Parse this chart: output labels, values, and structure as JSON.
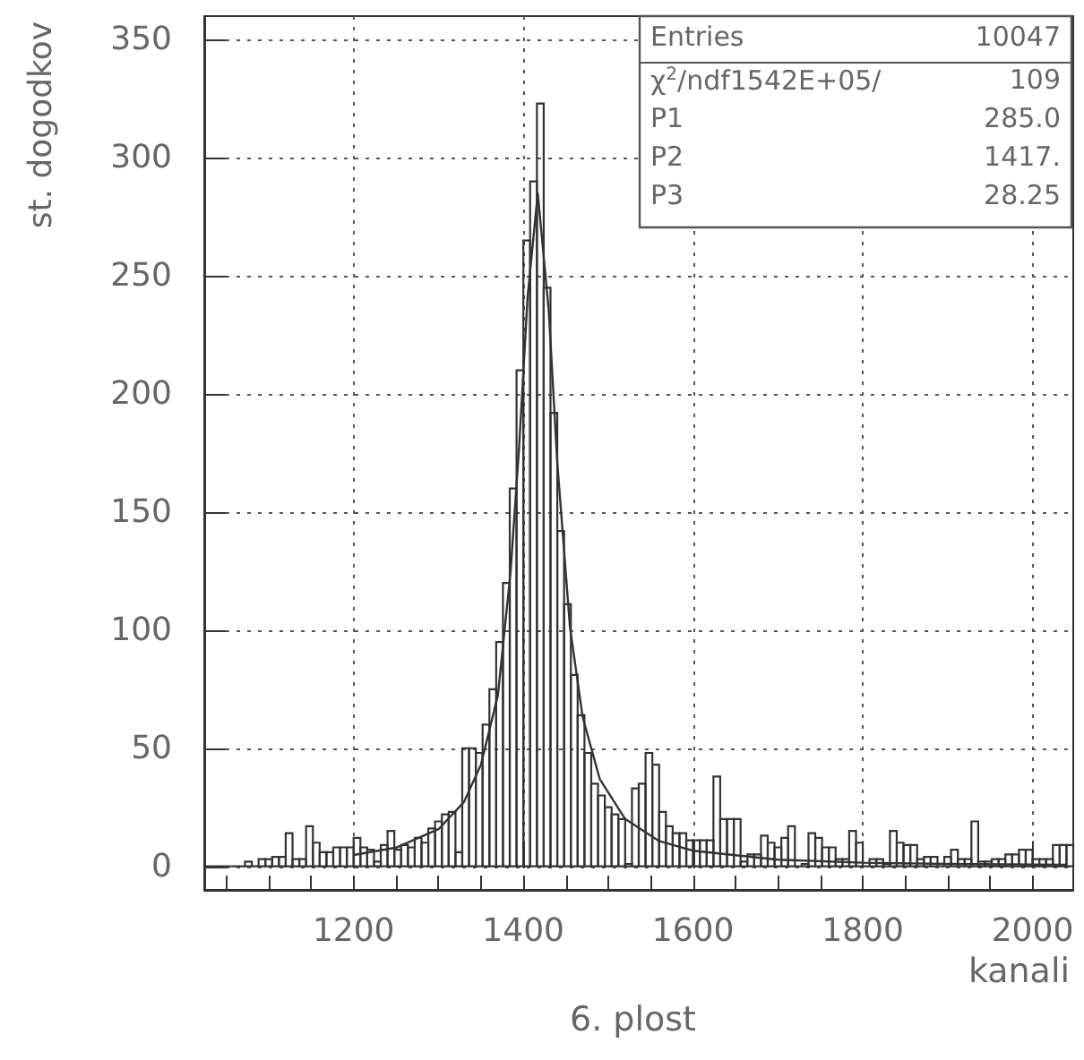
{
  "chart_data": {
    "type": "histogram",
    "title": "6. plost",
    "xlabel": "kanali",
    "ylabel": "st. dogodkov",
    "annotations": [
      "Entries",
      "10047",
      "χ$^{2}$/ndf1542E+05/",
      "109",
      "P1",
      "285.0",
      "P2",
      "1417.",
      "P3",
      "28.25"
    ],
    "bins": [
      1024,
      1032,
      1040,
      1048,
      1056,
      1064,
      1072,
      1080,
      1088,
      1096,
      1104,
      1112,
      1120,
      1128,
      1136,
      1144,
      1152,
      1160,
      1168,
      1176,
      1184,
      1192,
      1200,
      1208,
      1216,
      1224,
      1232,
      1240,
      1248,
      1256,
      1264,
      1272,
      1280,
      1288,
      1296,
      1304,
      1312,
      1320,
      1328,
      1336,
      1344,
      1352,
      1360,
      1368,
      1376,
      1384,
      1392,
      1400,
      1408,
      1416,
      1424,
      1432,
      1440,
      1448,
      1456,
      1464,
      1472,
      1480,
      1488,
      1496,
      1504,
      1512,
      1520,
      1528,
      1536,
      1544,
      1552,
      1560,
      1568,
      1576,
      1584,
      1592,
      1600,
      1608,
      1616,
      1624,
      1632,
      1640,
      1648,
      1656,
      1664,
      1672,
      1680,
      1688,
      1696,
      1704,
      1712,
      1720,
      1728,
      1736,
      1744,
      1752,
      1760,
      1768,
      1776,
      1784,
      1792,
      1800,
      1808,
      1816,
      1824,
      1832,
      1840,
      1848,
      1856,
      1864,
      1872,
      1880,
      1888,
      1896,
      1904,
      1912,
      1920,
      1928,
      1936,
      1944,
      1952,
      1960,
      1968,
      1976,
      1984,
      1992,
      2000,
      2008,
      2016,
      2024,
      2032,
      2040,
      2048
    ],
    "series": [
      {
        "color": "#333333",
        "values": [
          0,
          0,
          0,
          0,
          0,
          0,
          2,
          0,
          3,
          3,
          4,
          4,
          14,
          3,
          3,
          17,
          10,
          6,
          6,
          8,
          8,
          8,
          12,
          8,
          7,
          2,
          9,
          15,
          7,
          9,
          8,
          12,
          10,
          16,
          19,
          22,
          23,
          6,
          50,
          50,
          48,
          60,
          75,
          95,
          120,
          160,
          210,
          265,
          290,
          323,
          245,
          192,
          142,
          111,
          81,
          64,
          48,
          35,
          30,
          25,
          22,
          20,
          1,
          33,
          35,
          48,
          43,
          23,
          17,
          14,
          14,
          11,
          11,
          11,
          11,
          38,
          20,
          20,
          20,
          2,
          5,
          5,
          13,
          10,
          8,
          12,
          17,
          0,
          1,
          14,
          12,
          8,
          8,
          3,
          3,
          15,
          10,
          0,
          3,
          3,
          1,
          15,
          10,
          9,
          9,
          3,
          4,
          4,
          0,
          4,
          7,
          3,
          3,
          19,
          2,
          2,
          3,
          3,
          5,
          5,
          7,
          7,
          3,
          3,
          3,
          9,
          9,
          9
        ]
      },
      {
        "type": "line",
        "color": "#333333",
        "x": [
          1200,
          1250,
          1300,
          1330,
          1350,
          1370,
          1385,
          1395,
          1405,
          1417,
          1430,
          1440,
          1455,
          1470,
          1490,
          1520,
          1560,
          1600,
          1700,
          1800,
          1900,
          2040
        ],
        "values": [
          4.8,
          7.9,
          15.7,
          27.2,
          43,
          72.4,
          124.8,
          177.4,
          241,
          285,
          235,
          171,
          101,
          63,
          37,
          20,
          10.7,
          6.6,
          2.8,
          1.5,
          1,
          0.6
        ]
      }
    ],
    "xlim": [
      1024,
      2048
    ],
    "xticks": [
      {
        "value": 1050,
        "label": null
      },
      {
        "value": 1100,
        "label": null
      },
      {
        "value": 1150,
        "label": null
      },
      1200,
      {
        "value": 1250,
        "label": null
      },
      {
        "value": 1300,
        "label": null
      },
      {
        "value": 1350,
        "label": null
      },
      1400,
      {
        "value": 1450,
        "label": null
      },
      {
        "value": 1500,
        "label": null
      },
      {
        "value": 1550,
        "label": null
      },
      1600,
      {
        "value": 1650,
        "label": null
      },
      {
        "value": 1700,
        "label": null
      },
      {
        "value": 1750,
        "label": null
      },
      1800,
      {
        "value": 1850,
        "label": null
      },
      {
        "value": 1900,
        "label": null
      },
      {
        "value": 1950,
        "label": null
      },
      2000
    ],
    "ylim": [
      -10,
      360
    ],
    "yticks": [
      0,
      50,
      100,
      150,
      200,
      250,
      300,
      350
    ],
    "grid": true,
    "line_style": "solid",
    "marker": "none"
  }
}
